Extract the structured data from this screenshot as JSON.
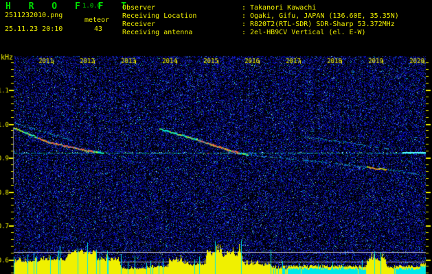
{
  "app": {
    "title": "H R O F F T",
    "version": "1.0.0",
    "filename": "2511232010.png",
    "mode": "meteor",
    "datetime": "25.11.23 20:10",
    "count": "43",
    "separator": ":",
    "info_rows": [
      {
        "label": "Observer",
        "value": "Takanori Kawachi"
      },
      {
        "label": "Receiving Location",
        "value": "Ogaki, Gifu, JAPAN (136.60E, 35.35N)"
      },
      {
        "label": "Receiver",
        "value": "R820T2(RTL-SDR) SDR-Sharp 53.372MHz"
      },
      {
        "label": "Receiving antenna",
        "value": "2el-HB9CV Vertical (el. E-W)"
      }
    ]
  },
  "colors": {
    "green": "#00e000",
    "yellow": "#f0f000",
    "cyan": "#00e8e8",
    "red_core": "#ff2850",
    "ref_line": "#b4b4c4",
    "noise_blue": "#0000a0",
    "bg": "#000000"
  },
  "chart_data": {
    "type": "heatmap",
    "subtype": "meteor-radio-echo-spectrogram",
    "ylabel": "kHz",
    "y_ticks": [
      "1.1",
      "1.0",
      "0.9",
      "0.8",
      "0.7",
      "0.6"
    ],
    "y_tick_khz": [
      1.1,
      1.0,
      0.9,
      0.8,
      0.7,
      0.6
    ],
    "y_range_khz": [
      0.56,
      1.2
    ],
    "x_ticks": [
      "2011",
      "2012",
      "2013",
      "2014",
      "2015",
      "2016",
      "2017",
      "2018",
      "2019",
      "2020"
    ],
    "x_meaning": "time-of-day 20:11 to 20:20, 1 minute per division",
    "grid": false,
    "legend": false,
    "carrier_line": {
      "khz": 0.914,
      "y": 223
    },
    "reference_lines_y": [
      368,
      382
    ],
    "start_marker": {
      "x": 19,
      "y1": 186,
      "y2": 268
    },
    "echo_traces": [
      {
        "pts": [
          [
            20,
            186
          ],
          [
            70,
            207
          ],
          [
            120,
            218
          ],
          [
            150,
            223
          ]
        ],
        "bright": true,
        "red": [
          55,
          135
        ]
      },
      {
        "pts": [
          [
            20,
            179
          ],
          [
            110,
            206
          ]
        ],
        "bright": false
      },
      {
        "pts": [
          [
            232,
            188
          ],
          [
            285,
            203
          ],
          [
            330,
            218
          ],
          [
            360,
            226
          ]
        ],
        "bright": true,
        "red": [
          288,
          348
        ]
      },
      {
        "pts": [
          [
            360,
            226
          ],
          [
            470,
            236
          ],
          [
            585,
            250
          ],
          [
            619,
            256
          ]
        ],
        "bright": false,
        "hot": [
          533,
          562
        ]
      },
      {
        "pts": [
          [
            437,
            198
          ],
          [
            500,
            207
          ],
          [
            565,
            217
          ]
        ],
        "bright": false
      }
    ],
    "level_envelope": [
      [
        20,
        58,
        10,
        22
      ],
      [
        58,
        100,
        14,
        26
      ],
      [
        100,
        140,
        22,
        38
      ],
      [
        140,
        175,
        12,
        26
      ],
      [
        175,
        215,
        4,
        10
      ],
      [
        215,
        245,
        4,
        14
      ],
      [
        245,
        265,
        10,
        24
      ],
      [
        265,
        300,
        7,
        18
      ],
      [
        300,
        352,
        16,
        38
      ],
      [
        352,
        395,
        7,
        18
      ],
      [
        395,
        420,
        4,
        10
      ],
      [
        420,
        533,
        1,
        6
      ],
      [
        533,
        562,
        10,
        28
      ],
      [
        562,
        578,
        4,
        12
      ],
      [
        578,
        612,
        1,
        5
      ],
      [
        612,
        620,
        2,
        6
      ]
    ]
  }
}
